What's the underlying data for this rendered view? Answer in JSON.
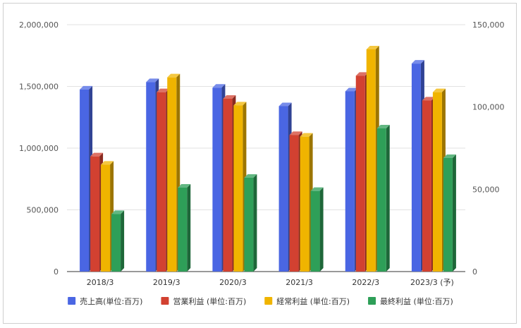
{
  "chart_data": {
    "type": "bar",
    "categories": [
      "2018/3",
      "2019/3",
      "2020/3",
      "2021/3",
      "2022/3",
      "2023/3 (予)"
    ],
    "series": [
      {
        "name": "売上高(単位:百万)",
        "axis": "left",
        "color": "#4a66e3",
        "values": [
          1475000,
          1535000,
          1490000,
          1340000,
          1460000,
          1685000
        ]
      },
      {
        "name": "営業利益 (単位:百万)",
        "axis": "right",
        "color": "#d24131",
        "values": [
          70000,
          109000,
          105000,
          83000,
          119000,
          104000
        ]
      },
      {
        "name": "経常利益 (単位:百万)",
        "axis": "right",
        "color": "#f0b400",
        "values": [
          65000,
          118000,
          101000,
          82000,
          135000,
          109000
        ]
      },
      {
        "name": "最終利益 (単位:百万)",
        "axis": "right",
        "color": "#2e9f58",
        "values": [
          35000,
          51000,
          57000,
          49000,
          87000,
          69000
        ]
      }
    ],
    "y_left": {
      "ylim": [
        0,
        2000000
      ],
      "ticks": [
        "0",
        "500,000",
        "1,000,000",
        "1,500,000",
        "2,000,000"
      ]
    },
    "y_right": {
      "ylim": [
        0,
        150000
      ],
      "ticks": [
        "0",
        "50,000",
        "100,000",
        "150,000"
      ]
    },
    "grid": true,
    "legend_position": "bottom",
    "style": "3d-bars"
  }
}
